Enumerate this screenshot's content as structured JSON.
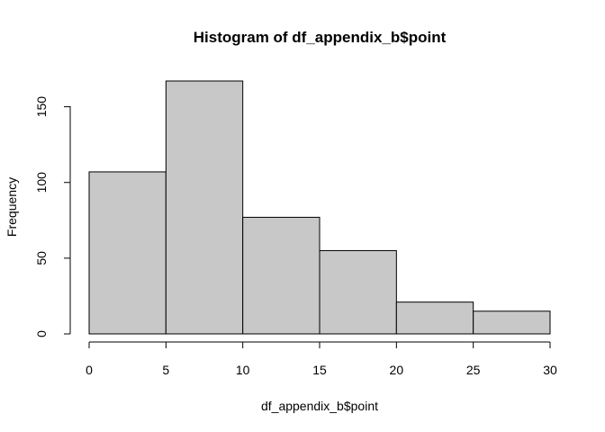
{
  "chart_data": {
    "type": "bar",
    "title": "Histogram of df_appendix_b$point",
    "xlabel": "df_appendix_b$point",
    "ylabel": "Frequency",
    "bins": [
      {
        "start": 0,
        "end": 5,
        "count": 107
      },
      {
        "start": 5,
        "end": 10,
        "count": 167
      },
      {
        "start": 10,
        "end": 15,
        "count": 77
      },
      {
        "start": 15,
        "end": 20,
        "count": 55
      },
      {
        "start": 20,
        "end": 25,
        "count": 21
      },
      {
        "start": 25,
        "end": 30,
        "count": 15
      }
    ],
    "x_ticks": [
      0,
      5,
      10,
      15,
      20,
      25,
      30
    ],
    "y_ticks": [
      0,
      50,
      100,
      150
    ],
    "xlim": [
      0,
      30
    ],
    "ylim": [
      0,
      167
    ],
    "bar_fill": "#c8c8c8",
    "bar_stroke": "#000000",
    "grid": false,
    "legend": "none"
  }
}
